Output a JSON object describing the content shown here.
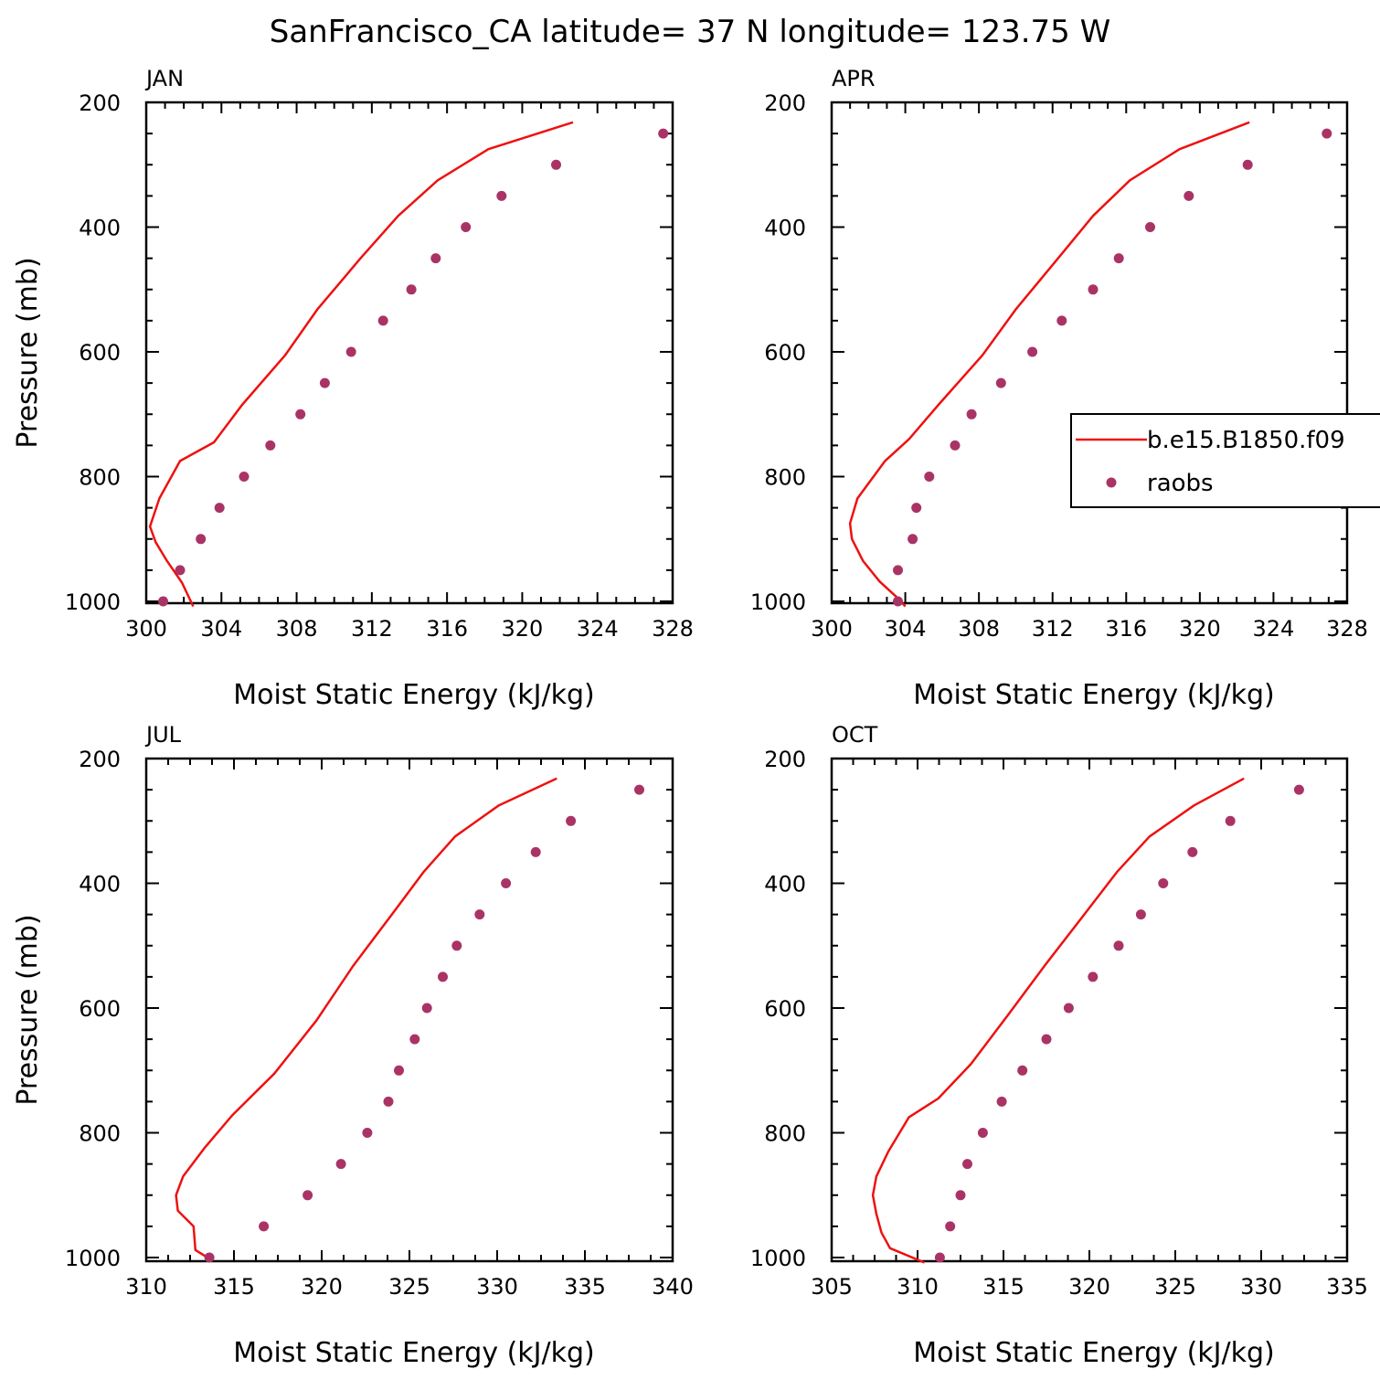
{
  "figure": {
    "title": "SanFrancisco_CA  latitude= 37 N longitude= 123.75 W"
  },
  "legend": {
    "model_label": "b.e15.B1850.f09",
    "obs_label": "raobs",
    "model_color": "#ee1111",
    "obs_color": "#aa3366"
  },
  "chart_data": [
    {
      "type": "line",
      "panel": "JAN",
      "xlabel": "Moist Static Energy (kJ/kg)",
      "ylabel": "Pressure (mb)",
      "xlim": [
        300,
        328
      ],
      "ylim": [
        200,
        1000
      ],
      "y_inverted": true,
      "xticks": [
        300,
        304,
        308,
        312,
        316,
        320,
        324,
        328
      ],
      "yticks": [
        200,
        400,
        600,
        800,
        1000
      ],
      "series": [
        {
          "name": "b.e15.B1850.f09",
          "kind": "line",
          "points": [
            [
              322.7,
              232
            ],
            [
              318.2,
              275
            ],
            [
              315.5,
              325
            ],
            [
              313.4,
              382
            ],
            [
              311.4,
              450
            ],
            [
              309.1,
              532
            ],
            [
              307.4,
              605
            ],
            [
              305.1,
              685
            ],
            [
              303.6,
              745
            ],
            [
              301.8,
              775
            ],
            [
              300.7,
              835
            ],
            [
              300.2,
              880
            ],
            [
              300.5,
              905
            ],
            [
              301.1,
              935
            ],
            [
              301.9,
              970
            ],
            [
              302.5,
              1008
            ]
          ]
        },
        {
          "name": "raobs",
          "kind": "scatter",
          "points": [
            [
              327.5,
              250
            ],
            [
              321.8,
              300
            ],
            [
              318.9,
              350
            ],
            [
              317.0,
              400
            ],
            [
              315.4,
              450
            ],
            [
              314.1,
              500
            ],
            [
              312.6,
              550
            ],
            [
              310.9,
              600
            ],
            [
              309.5,
              650
            ],
            [
              308.2,
              700
            ],
            [
              306.6,
              750
            ],
            [
              305.2,
              800
            ],
            [
              303.9,
              850
            ],
            [
              302.9,
              900
            ],
            [
              301.8,
              950
            ],
            [
              300.9,
              1000
            ]
          ]
        }
      ]
    },
    {
      "type": "line",
      "panel": "APR",
      "xlabel": "Moist Static Energy (kJ/kg)",
      "ylabel": "",
      "xlim": [
        300,
        328
      ],
      "ylim": [
        200,
        1000
      ],
      "y_inverted": true,
      "xticks": [
        300,
        304,
        308,
        312,
        316,
        320,
        324,
        328
      ],
      "yticks": [
        200,
        400,
        600,
        800,
        1000
      ],
      "series": [
        {
          "name": "b.e15.B1850.f09",
          "kind": "line",
          "points": [
            [
              322.7,
              232
            ],
            [
              318.9,
              275
            ],
            [
              316.2,
              325
            ],
            [
              314.2,
              382
            ],
            [
              312.3,
              450
            ],
            [
              310.0,
              532
            ],
            [
              308.2,
              605
            ],
            [
              305.8,
              685
            ],
            [
              304.2,
              740
            ],
            [
              302.9,
              775
            ],
            [
              301.4,
              835
            ],
            [
              301.0,
              875
            ],
            [
              301.1,
              900
            ],
            [
              301.7,
              935
            ],
            [
              302.6,
              968
            ],
            [
              303.6,
              995
            ],
            [
              304.0,
              1008
            ]
          ]
        },
        {
          "name": "raobs",
          "kind": "scatter",
          "points": [
            [
              326.9,
              250
            ],
            [
              322.6,
              300
            ],
            [
              319.4,
              350
            ],
            [
              317.3,
              400
            ],
            [
              315.6,
              450
            ],
            [
              314.2,
              500
            ],
            [
              312.5,
              550
            ],
            [
              310.9,
              600
            ],
            [
              309.2,
              650
            ],
            [
              307.6,
              700
            ],
            [
              306.7,
              750
            ],
            [
              305.3,
              800
            ],
            [
              304.6,
              850
            ],
            [
              304.4,
              900
            ],
            [
              303.6,
              950
            ],
            [
              303.6,
              1000
            ]
          ]
        }
      ]
    },
    {
      "type": "line",
      "panel": "JUL",
      "xlabel": "Moist Static Energy (kJ/kg)",
      "ylabel": "Pressure (mb)",
      "xlim": [
        310,
        340
      ],
      "ylim": [
        200,
        1000
      ],
      "y_inverted": true,
      "xticks": [
        310,
        315,
        320,
        325,
        330,
        335,
        340
      ],
      "yticks": [
        200,
        400,
        600,
        800,
        1000
      ],
      "series": [
        {
          "name": "b.e15.B1850.f09",
          "kind": "line",
          "points": [
            [
              333.4,
              232
            ],
            [
              330.1,
              275
            ],
            [
              327.6,
              325
            ],
            [
              325.8,
              382
            ],
            [
              324.0,
              450
            ],
            [
              321.8,
              532
            ],
            [
              319.7,
              620
            ],
            [
              317.3,
              705
            ],
            [
              314.9,
              772
            ],
            [
              313.3,
              825
            ],
            [
              312.1,
              870
            ],
            [
              311.7,
              900
            ],
            [
              311.8,
              925
            ],
            [
              312.7,
              950
            ],
            [
              312.8,
              988
            ],
            [
              313.5,
              1000
            ]
          ]
        },
        {
          "name": "raobs",
          "kind": "scatter",
          "points": [
            [
              338.1,
              250
            ],
            [
              334.2,
              300
            ],
            [
              332.2,
              350
            ],
            [
              330.5,
              400
            ],
            [
              329.0,
              450
            ],
            [
              327.7,
              500
            ],
            [
              326.9,
              550
            ],
            [
              326.0,
              600
            ],
            [
              325.3,
              650
            ],
            [
              324.4,
              700
            ],
            [
              323.8,
              750
            ],
            [
              322.6,
              800
            ],
            [
              321.1,
              850
            ],
            [
              319.2,
              900
            ],
            [
              316.7,
              950
            ],
            [
              313.6,
              1000
            ]
          ]
        }
      ]
    },
    {
      "type": "line",
      "panel": "OCT",
      "xlabel": "Moist Static Energy (kJ/kg)",
      "ylabel": "",
      "xlim": [
        305,
        335
      ],
      "ylim": [
        200,
        1000
      ],
      "y_inverted": true,
      "xticks": [
        305,
        310,
        315,
        320,
        325,
        330,
        335
      ],
      "yticks": [
        200,
        400,
        600,
        800,
        1000
      ],
      "series": [
        {
          "name": "b.e15.B1850.f09",
          "kind": "line",
          "points": [
            [
              329.0,
              232
            ],
            [
              326.1,
              275
            ],
            [
              323.5,
              325
            ],
            [
              321.6,
              382
            ],
            [
              319.7,
              450
            ],
            [
              317.4,
              532
            ],
            [
              315.3,
              610
            ],
            [
              313.1,
              690
            ],
            [
              311.2,
              745
            ],
            [
              309.5,
              775
            ],
            [
              308.3,
              830
            ],
            [
              307.6,
              870
            ],
            [
              307.4,
              900
            ],
            [
              307.6,
              930
            ],
            [
              307.9,
              960
            ],
            [
              308.4,
              985
            ],
            [
              310.4,
              1008
            ]
          ]
        },
        {
          "name": "raobs",
          "kind": "scatter",
          "points": [
            [
              332.2,
              250
            ],
            [
              328.2,
              300
            ],
            [
              326.0,
              350
            ],
            [
              324.3,
              400
            ],
            [
              323.0,
              450
            ],
            [
              321.7,
              500
            ],
            [
              320.2,
              550
            ],
            [
              318.8,
              600
            ],
            [
              317.5,
              650
            ],
            [
              316.1,
              700
            ],
            [
              314.9,
              750
            ],
            [
              313.8,
              800
            ],
            [
              312.9,
              850
            ],
            [
              312.5,
              900
            ],
            [
              311.9,
              950
            ],
            [
              311.3,
              1000
            ]
          ]
        }
      ]
    }
  ]
}
